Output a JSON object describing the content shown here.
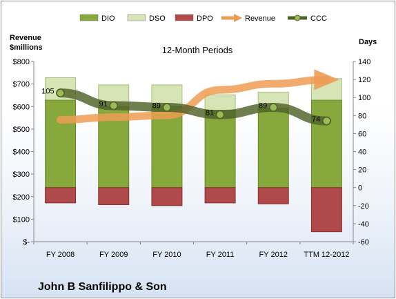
{
  "chart_data": {
    "type": "bar",
    "title": "John B Sanfilippo & Son",
    "subtitle": "12-Month Periods",
    "categories": [
      "FY 2008",
      "FY 2009",
      "FY 2010",
      "FY 2011",
      "FY 2012",
      "TTM 12-2012"
    ],
    "left_axis": {
      "label_line1": "Revenue",
      "label_line2": "$millions",
      "ylim": [
        0,
        800
      ],
      "ticks": [
        0,
        100,
        200,
        300,
        400,
        500,
        600,
        700,
        800
      ],
      "tick_labels": [
        "$-",
        "$100",
        "$200",
        "$300",
        "$400",
        "$500",
        "$600",
        "$700",
        "$800"
      ]
    },
    "right_axis": {
      "label": "Days",
      "ylim": [
        -60,
        140
      ],
      "ticks": [
        -60,
        -40,
        -20,
        0,
        20,
        40,
        60,
        80,
        100,
        120,
        140
      ]
    },
    "legend_position": "top",
    "series": [
      {
        "name": "DIO",
        "axis": "right",
        "kind": "stacked-bar",
        "color": "#86a83c",
        "values": [
          97,
          90,
          90,
          86,
          88,
          97
        ]
      },
      {
        "name": "DSO",
        "axis": "right",
        "kind": "stacked-bar",
        "color": "#d7e4b5",
        "values": [
          25,
          24,
          24,
          17,
          18,
          24
        ]
      },
      {
        "name": "DPO",
        "axis": "right",
        "kind": "negative-bar",
        "color": "#b04a4a",
        "values": [
          -17,
          -19,
          -20,
          -17,
          -18,
          -49
        ]
      },
      {
        "name": "Revenue",
        "axis": "left",
        "kind": "arrow-line",
        "color": "#ed9c53",
        "values": [
          541,
          553,
          561,
          674,
          701,
          719
        ]
      },
      {
        "name": "CCC",
        "axis": "right",
        "kind": "line",
        "color": "#4f6228",
        "values": [
          105,
          91,
          89,
          81,
          89,
          74
        ]
      }
    ],
    "ccc_labels": [
      "105",
      "91",
      "89",
      "81",
      "89",
      "74"
    ]
  }
}
